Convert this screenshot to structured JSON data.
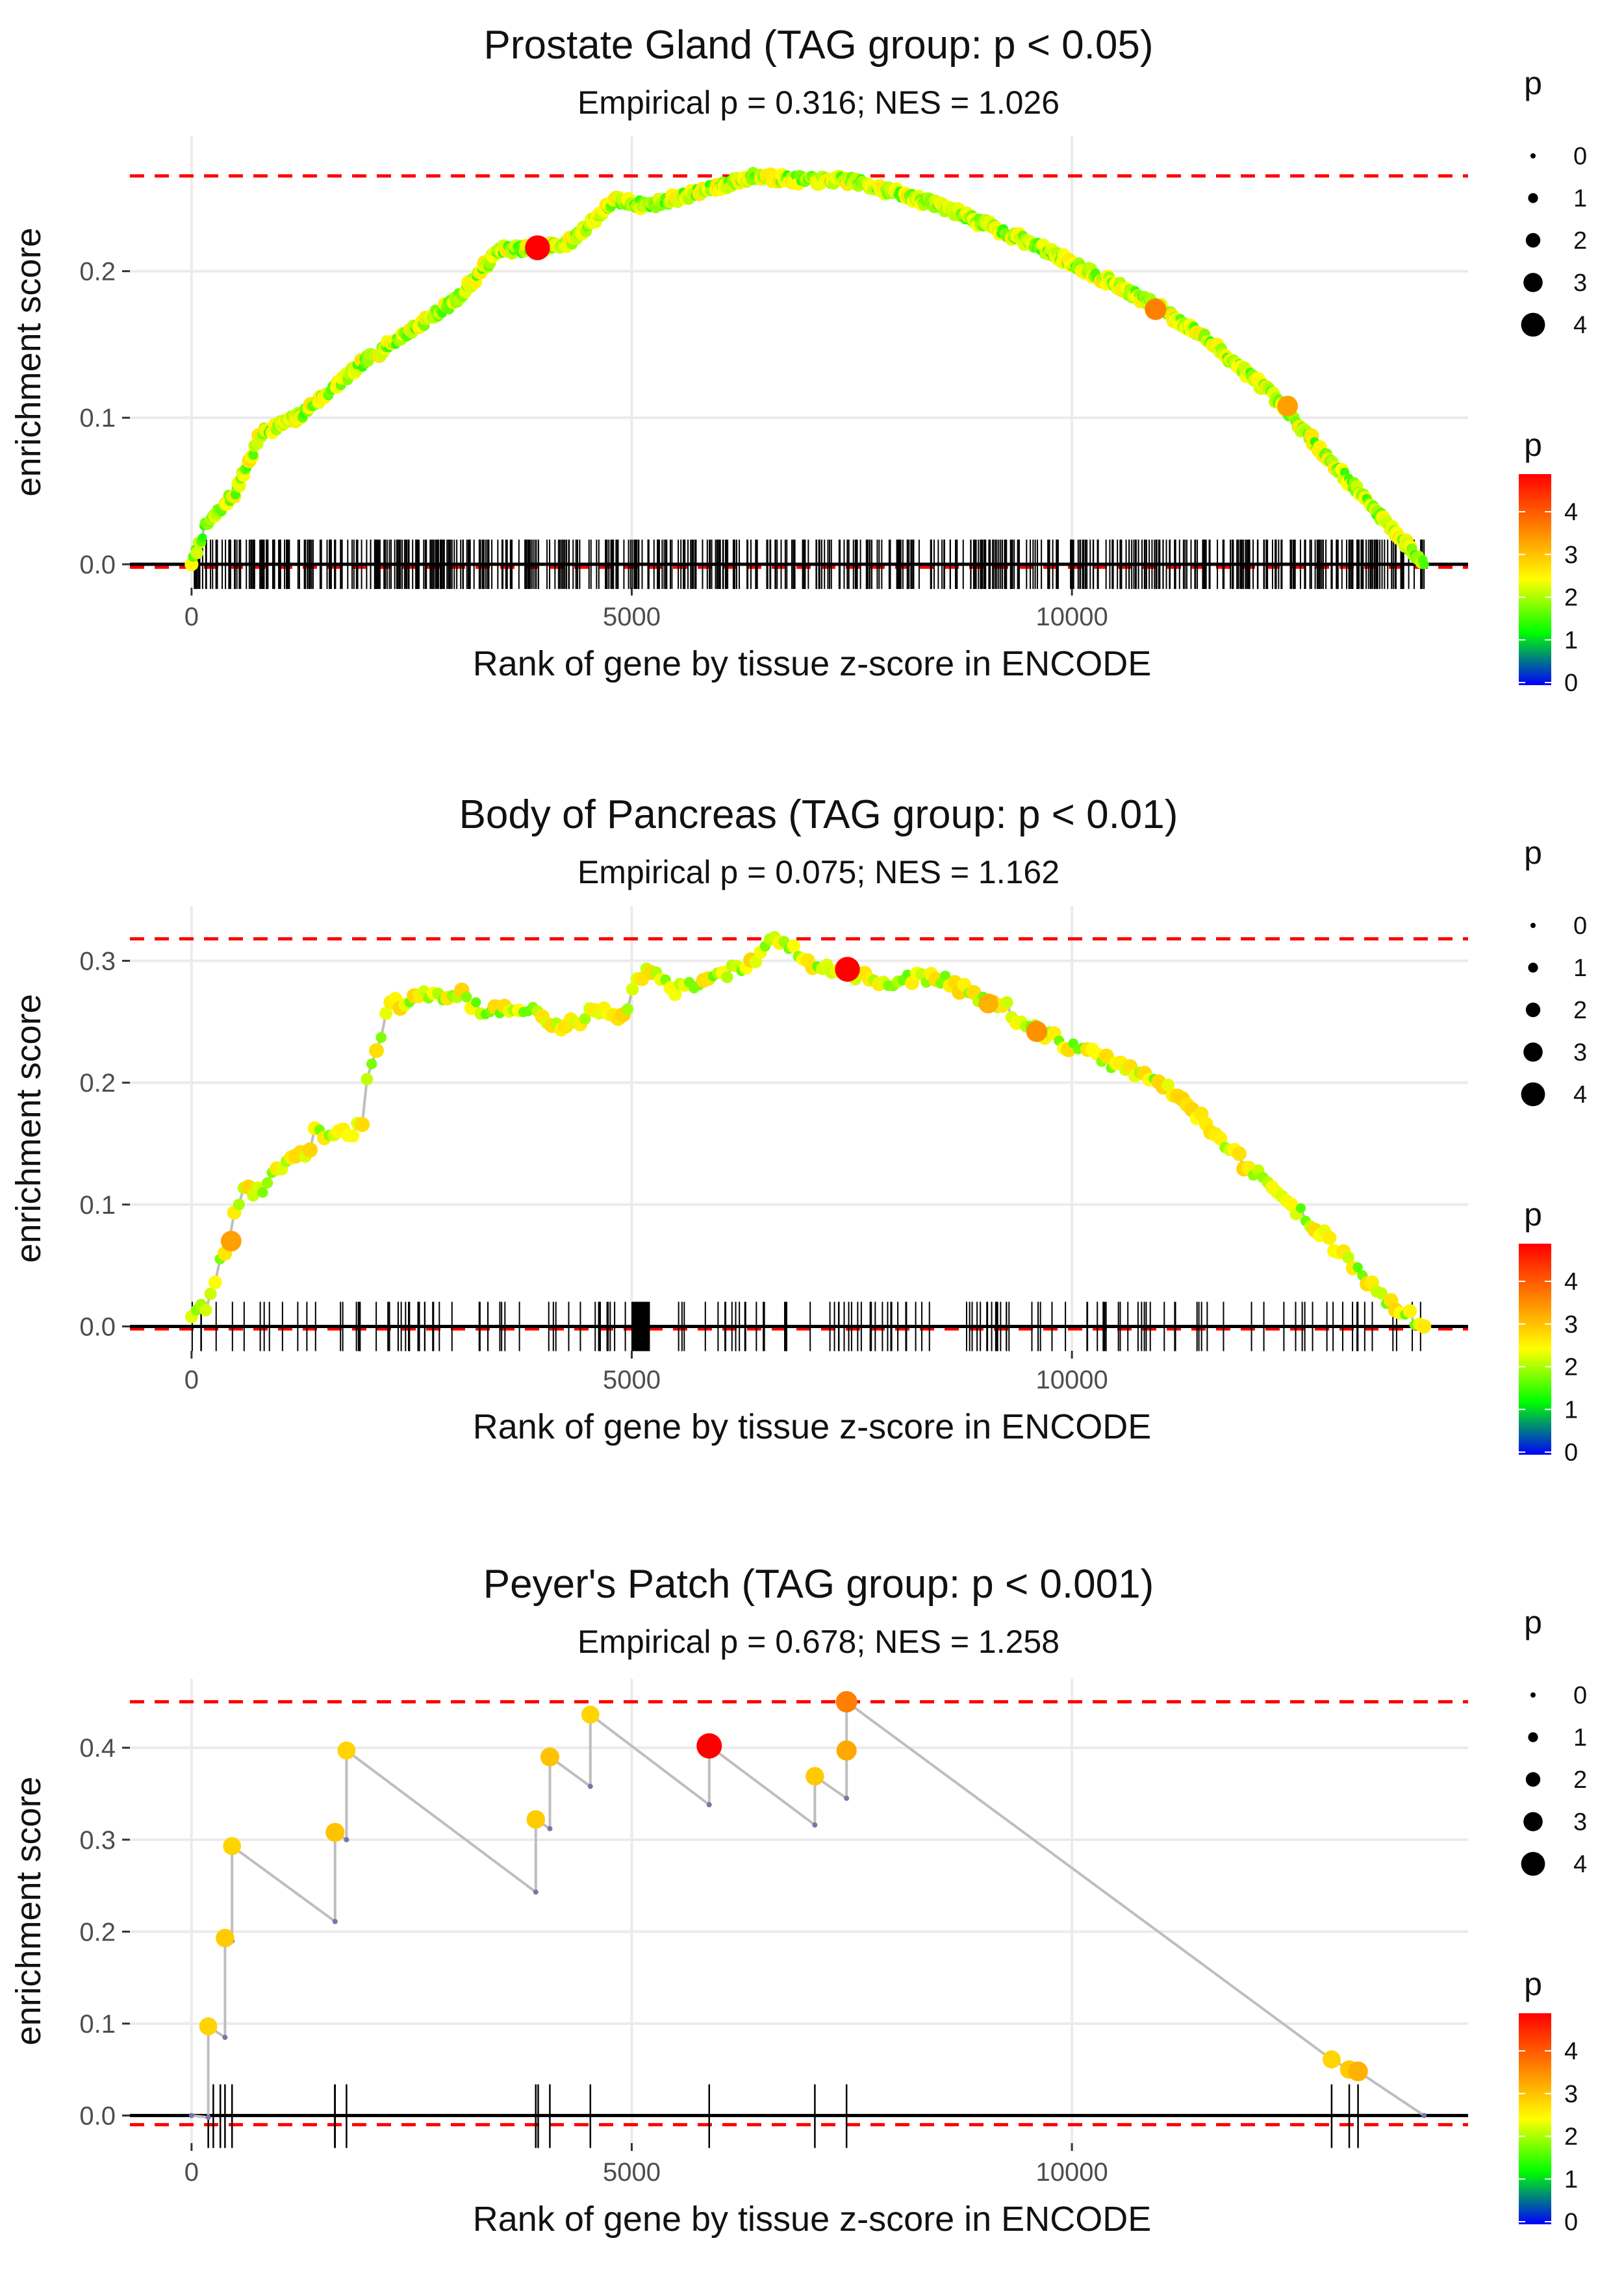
{
  "colors": {
    "ref_line": "#ff0000",
    "zero_line": "#000000",
    "grid": "#ebebeb",
    "path": "#bebebe",
    "gradient_stops": [
      "#0000ff",
      "#00ff00",
      "#ffff00",
      "#ff7f00",
      "#ff0000"
    ]
  },
  "chart_data": [
    {
      "type": "scatter",
      "title": "Prostate Gland (TAG group: p < 0.05)",
      "subtitle": "Empirical p = 0.316; NES = 1.026",
      "xlabel": "Rank of gene by tissue z-score in ENCODE",
      "ylabel": "enrichment score",
      "x_ticks": [
        0,
        5000,
        10000
      ],
      "x_tick_labels": [
        "0",
        "5000",
        "10000"
      ],
      "y_ticks": [
        0,
        0.1,
        0.2
      ],
      "y_tick_labels": [
        "0.0",
        "0.1",
        "0.2"
      ],
      "xlim": [
        -700,
        14500
      ],
      "ylim": [
        -0.016,
        0.292
      ],
      "max_es": 0.265,
      "min_es": -0.002,
      "n_genes": 14000,
      "curve_kind": "dense",
      "curve_points": [
        [
          0,
          0
        ],
        [
          150,
          0.025
        ],
        [
          500,
          0.05
        ],
        [
          800,
          0.09
        ],
        [
          1200,
          0.1
        ],
        [
          1500,
          0.115
        ],
        [
          2000,
          0.14
        ],
        [
          2500,
          0.16
        ],
        [
          3000,
          0.18
        ],
        [
          3500,
          0.215
        ],
        [
          3900,
          0.215
        ],
        [
          4300,
          0.22
        ],
        [
          4800,
          0.248
        ],
        [
          5200,
          0.245
        ],
        [
          5700,
          0.253
        ],
        [
          6400,
          0.265
        ],
        [
          7000,
          0.262
        ],
        [
          7500,
          0.262
        ],
        [
          8500,
          0.245
        ],
        [
          9500,
          0.22
        ],
        [
          10200,
          0.2
        ],
        [
          11000,
          0.175
        ],
        [
          11500,
          0.155
        ],
        [
          12200,
          0.12
        ],
        [
          12800,
          0.08
        ],
        [
          13400,
          0.04
        ],
        [
          14000,
          0
        ]
      ],
      "highlights": [
        {
          "x": 3930,
          "y": 0.216,
          "p": 4.6
        },
        {
          "x": 10950,
          "y": 0.174,
          "p": 3.8
        },
        {
          "x": 12450,
          "y": 0.108,
          "p": 3.6
        }
      ],
      "size_legend": {
        "title": "p",
        "labels": [
          "0",
          "1",
          "2",
          "3",
          "4"
        ]
      },
      "color_legend": {
        "title": "p",
        "labels": [
          "4",
          "3",
          "2",
          "1",
          "0"
        ]
      }
    },
    {
      "type": "scatter",
      "title": "Body of Pancreas (TAG group: p < 0.01)",
      "subtitle": "Empirical p = 0.075; NES = 1.162",
      "xlabel": "Rank of gene by tissue z-score in ENCODE",
      "ylabel": "enrichment score",
      "x_ticks": [
        0,
        5000,
        10000
      ],
      "x_tick_labels": [
        "0",
        "5000",
        "10000"
      ],
      "y_ticks": [
        0,
        0.1,
        0.2,
        0.3
      ],
      "y_tick_labels": [
        "0.0",
        "0.1",
        "0.2",
        "0.3"
      ],
      "xlim": [
        -700,
        14500
      ],
      "ylim": [
        -0.02,
        0.345
      ],
      "max_es": 0.318,
      "min_es": -0.002,
      "n_genes": 14000,
      "curve_kind": "medium",
      "curve_points": [
        [
          0,
          0.008
        ],
        [
          200,
          0.02
        ],
        [
          300,
          0.05
        ],
        [
          450,
          0.07
        ],
        [
          500,
          0.1
        ],
        [
          600,
          0.112
        ],
        [
          800,
          0.112
        ],
        [
          1000,
          0.13
        ],
        [
          1300,
          0.14
        ],
        [
          1400,
          0.16
        ],
        [
          1600,
          0.155
        ],
        [
          1800,
          0.158
        ],
        [
          1950,
          0.17
        ],
        [
          2000,
          0.21
        ],
        [
          2100,
          0.23
        ],
        [
          2250,
          0.262
        ],
        [
          2500,
          0.27
        ],
        [
          2800,
          0.27
        ],
        [
          3000,
          0.275
        ],
        [
          3300,
          0.26
        ],
        [
          3700,
          0.258
        ],
        [
          3900,
          0.26
        ],
        [
          4100,
          0.245
        ],
        [
          4400,
          0.25
        ],
        [
          4600,
          0.262
        ],
        [
          4900,
          0.255
        ],
        [
          5050,
          0.28
        ],
        [
          5150,
          0.295
        ],
        [
          5500,
          0.275
        ],
        [
          5700,
          0.28
        ],
        [
          6000,
          0.29
        ],
        [
          6300,
          0.295
        ],
        [
          6650,
          0.318
        ],
        [
          7000,
          0.3
        ],
        [
          7400,
          0.293
        ],
        [
          7900,
          0.28
        ],
        [
          8400,
          0.288
        ],
        [
          8800,
          0.275
        ],
        [
          9200,
          0.265
        ],
        [
          9500,
          0.245
        ],
        [
          10000,
          0.23
        ],
        [
          10500,
          0.215
        ],
        [
          11000,
          0.2
        ],
        [
          11500,
          0.17
        ],
        [
          12000,
          0.13
        ],
        [
          12500,
          0.1
        ],
        [
          13000,
          0.065
        ],
        [
          13500,
          0.025
        ],
        [
          14000,
          0
        ]
      ],
      "highlights": [
        {
          "x": 7450,
          "y": 0.293,
          "p": 4.6
        },
        {
          "x": 450,
          "y": 0.07,
          "p": 3.6
        },
        {
          "x": 9600,
          "y": 0.242,
          "p": 3.7
        },
        {
          "x": 9050,
          "y": 0.265,
          "p": 3.4
        }
      ],
      "size_legend": {
        "title": "p",
        "labels": [
          "0",
          "1",
          "2",
          "3",
          "4"
        ]
      },
      "color_legend": {
        "title": "p",
        "labels": [
          "4",
          "3",
          "2",
          "1",
          "0"
        ]
      }
    },
    {
      "type": "scatter",
      "title": "Peyer's Patch (TAG group: p < 0.001)",
      "subtitle": "Empirical p = 0.678; NES = 1.258",
      "xlabel": "Rank of gene by tissue z-score in ENCODE",
      "ylabel": "enrichment score",
      "x_ticks": [
        0,
        5000,
        10000
      ],
      "x_tick_labels": [
        "0",
        "5000",
        "10000"
      ],
      "y_ticks": [
        0,
        0.1,
        0.2,
        0.3,
        0.4
      ],
      "y_tick_labels": [
        "0.0",
        "0.1",
        "0.2",
        "0.3",
        "0.4"
      ],
      "xlim": [
        -700,
        14500
      ],
      "ylim": [
        -0.03,
        0.475
      ],
      "max_es": 0.45,
      "min_es": -0.01,
      "n_genes": 14000,
      "curve_kind": "sparse",
      "peaks": [
        [
          190,
          0.097,
          3.0
        ],
        [
          380,
          0.193,
          3.1
        ],
        [
          460,
          0.293,
          3.0
        ],
        [
          1630,
          0.308,
          3.2
        ],
        [
          1760,
          0.397,
          3.0
        ],
        [
          3910,
          0.322,
          3.1
        ],
        [
          4070,
          0.39,
          3.2
        ],
        [
          4530,
          0.436,
          3.0
        ],
        [
          5880,
          0.402,
          4.7
        ],
        [
          7080,
          0.369,
          3.1
        ],
        [
          7440,
          0.397,
          3.5
        ],
        [
          7440,
          0.45,
          3.8
        ],
        [
          12950,
          0.061,
          3.0
        ],
        [
          13150,
          0.05,
          3.1
        ],
        [
          13250,
          0.048,
          3.4
        ]
      ],
      "path": [
        [
          0,
          0
        ],
        [
          190,
          -0.002
        ],
        [
          190,
          0.097
        ],
        [
          380,
          0.085
        ],
        [
          380,
          0.193
        ],
        [
          460,
          0.19
        ],
        [
          460,
          0.293
        ],
        [
          1630,
          0.211
        ],
        [
          1630,
          0.308
        ],
        [
          1760,
          0.3
        ],
        [
          1760,
          0.397
        ],
        [
          3910,
          0.243
        ],
        [
          3910,
          0.322
        ],
        [
          4070,
          0.312
        ],
        [
          4070,
          0.39
        ],
        [
          4530,
          0.358
        ],
        [
          4530,
          0.436
        ],
        [
          5880,
          0.338
        ],
        [
          5880,
          0.402
        ],
        [
          7080,
          0.316
        ],
        [
          7080,
          0.369
        ],
        [
          7440,
          0.345
        ],
        [
          7440,
          0.45
        ],
        [
          12950,
          0.061
        ],
        [
          13150,
          0.05
        ],
        [
          13250,
          0.048
        ],
        [
          14000,
          0
        ]
      ],
      "size_legend": {
        "title": "p",
        "labels": [
          "0",
          "1",
          "2",
          "3",
          "4"
        ]
      },
      "color_legend": {
        "title": "p",
        "labels": [
          "4",
          "3",
          "2",
          "1",
          "0"
        ]
      }
    }
  ]
}
